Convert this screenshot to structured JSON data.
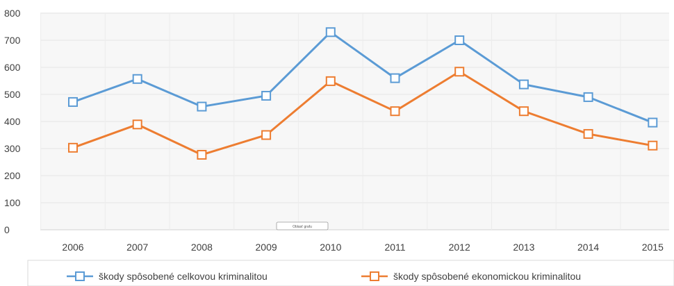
{
  "chart_data": {
    "type": "line",
    "title": "",
    "xlabel": "",
    "ylabel": "",
    "ylim": [
      0,
      800
    ],
    "y_ticks": [
      "0",
      "100",
      "200",
      "300",
      "400",
      "500",
      "600",
      "700",
      "800"
    ],
    "categories": [
      "2006",
      "2007",
      "2008",
      "2009",
      "2010",
      "2011",
      "2012",
      "2013",
      "2014",
      "2015"
    ],
    "grid": true,
    "legend_position": "bottom",
    "series": [
      {
        "name": "škody spôsobené celkovou kriminalitou",
        "color": "#5b9bd5",
        "marker": "square",
        "values": [
          472,
          557,
          455,
          495,
          730,
          560,
          700,
          537,
          490,
          396
        ]
      },
      {
        "name": "škody spôsobené ekonomickou kriminalitou",
        "color": "#ed7d31",
        "marker": "square",
        "values": [
          303,
          389,
          277,
          350,
          549,
          438,
          584,
          438,
          354,
          311
        ]
      }
    ],
    "annotation": "Oblasť grafu"
  }
}
